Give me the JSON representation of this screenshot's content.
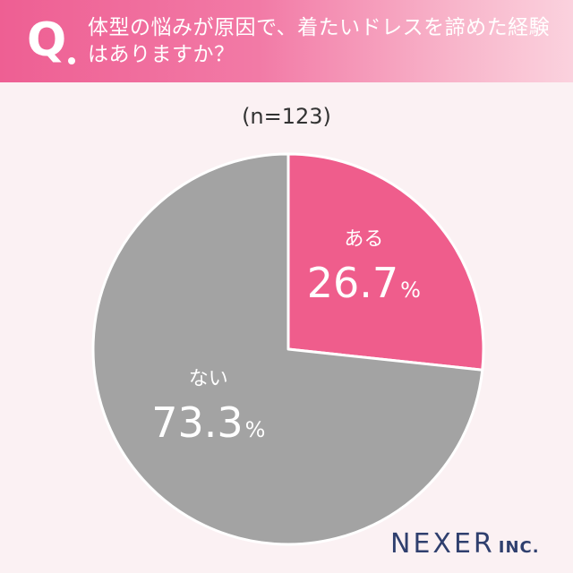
{
  "header": {
    "q_label": "Q",
    "question": "体型の悩みが原因で、着たいドレスを諦めた経験はありますか？"
  },
  "sample_size": "(n=123)",
  "brand": {
    "name": "NEXER",
    "suffix": "INC."
  },
  "colors": {
    "yes": "#ef5d8c",
    "no": "#a3a3a3",
    "label": "#ffffff",
    "banner": "#ee5f93",
    "logo": "#2f3f6e"
  },
  "chart_data": {
    "type": "pie",
    "title": "体型の悩みが原因で、着たいドレスを諦めた経験はありますか？",
    "slices": [
      {
        "label": "ある",
        "value": 26.7,
        "value_label": "26.7",
        "unit": "%",
        "color": "#ef5d8c"
      },
      {
        "label": "ない",
        "value": 73.3,
        "value_label": "73.3",
        "unit": "%",
        "color": "#a3a3a3"
      }
    ],
    "start": "12 o'clock, clockwise",
    "legend": "none"
  }
}
